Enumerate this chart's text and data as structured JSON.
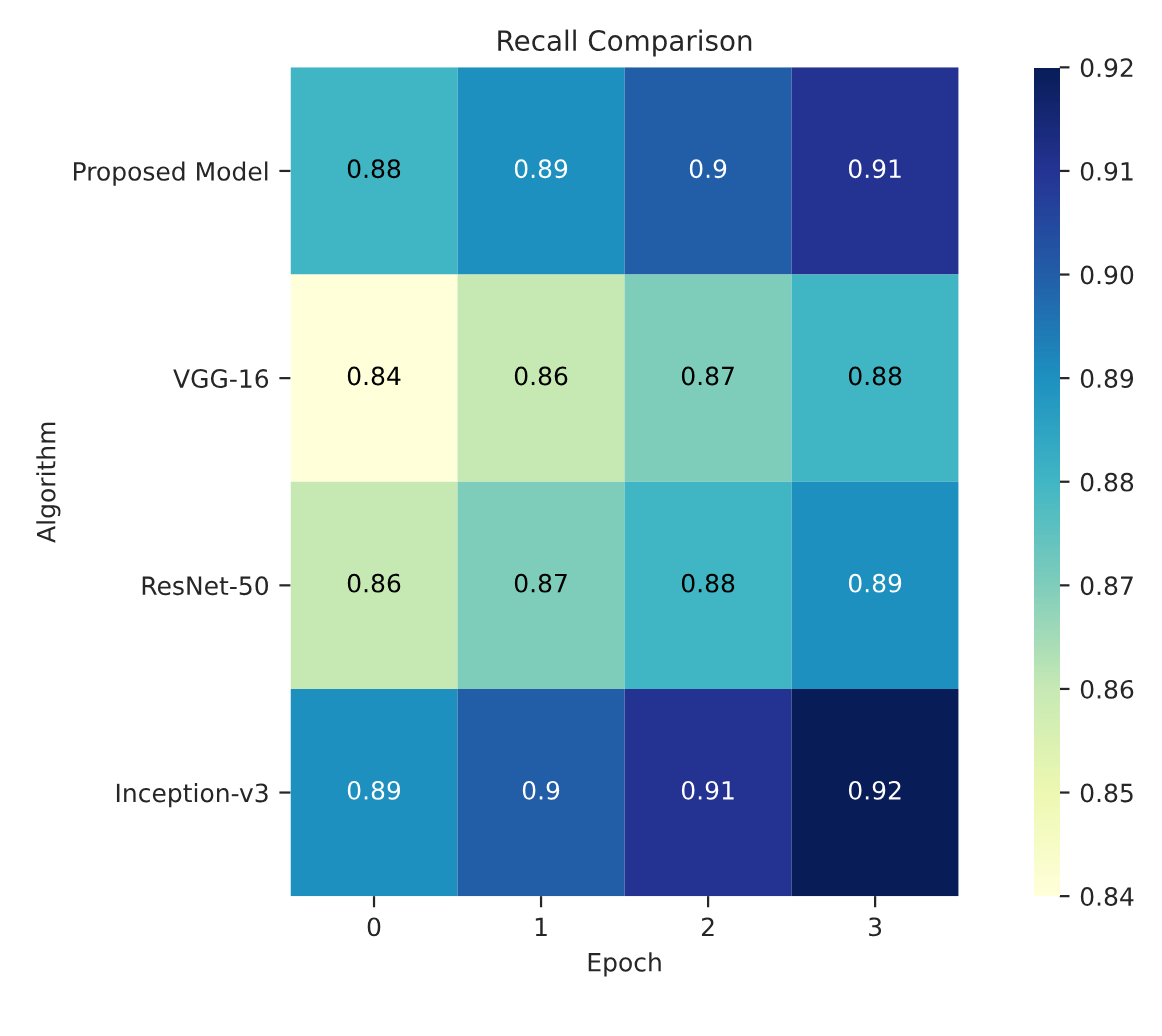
{
  "chart_data": {
    "type": "heatmap",
    "title": "Recall Comparison",
    "xlabel": "Epoch",
    "ylabel": "Algorithm",
    "categories": [
      "0",
      "1",
      "2",
      "3"
    ],
    "y_categories": [
      "Proposed Model",
      "VGG-16",
      "ResNet-50",
      "Inception-v3"
    ],
    "cells": [
      [
        0.88,
        0.89,
        0.9,
        0.91
      ],
      [
        0.84,
        0.86,
        0.87,
        0.88
      ],
      [
        0.86,
        0.87,
        0.88,
        0.89
      ],
      [
        0.89,
        0.9,
        0.91,
        0.92
      ]
    ],
    "data_labels": true,
    "clim": [
      0.84,
      0.92
    ],
    "cticks": [
      0.84,
      0.85,
      0.86,
      0.87,
      0.88,
      0.89,
      {
        "value": 0.9,
        "label": "0.90"
      },
      0.91,
      0.92
    ]
  }
}
